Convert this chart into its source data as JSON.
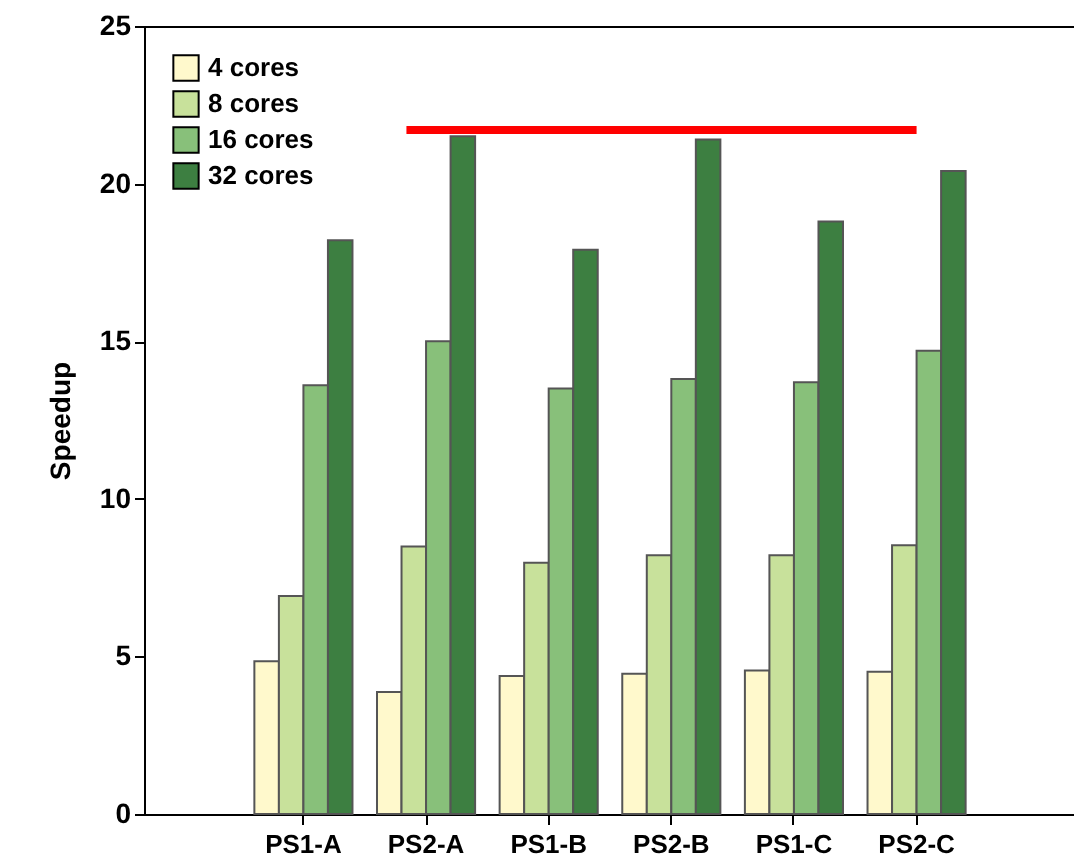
{
  "chart_data": {
    "type": "bar",
    "ylabel": "Speedup",
    "categories": [
      "PS1-A",
      "PS2-A",
      "PS1-B",
      "PS2-B",
      "PS1-C",
      "PS2-C"
    ],
    "series": [
      {
        "name": "4 cores",
        "color": "#fff9cc",
        "values": [
          4.85,
          3.87,
          4.38,
          4.45,
          4.55,
          4.51
        ]
      },
      {
        "name": "8 cores",
        "color": "#c8e19b",
        "values": [
          6.92,
          8.49,
          7.97,
          8.21,
          8.21,
          8.53
        ]
      },
      {
        "name": "16 cores",
        "color": "#88c07a",
        "values": [
          13.6,
          15.0,
          13.5,
          13.8,
          13.7,
          14.7
        ]
      },
      {
        "name": "32 cores",
        "color": "#3d7f41",
        "values": [
          18.2,
          21.5,
          17.9,
          21.4,
          18.8,
          20.4
        ]
      }
    ],
    "ylim": [
      0,
      25
    ],
    "yticks": [
      0,
      5,
      10,
      15,
      20,
      25
    ],
    "ref_lines": [
      {
        "axis": "y",
        "value": 21.7,
        "color": "#ff0000"
      }
    ],
    "legend": "top left",
    "grid": false
  }
}
